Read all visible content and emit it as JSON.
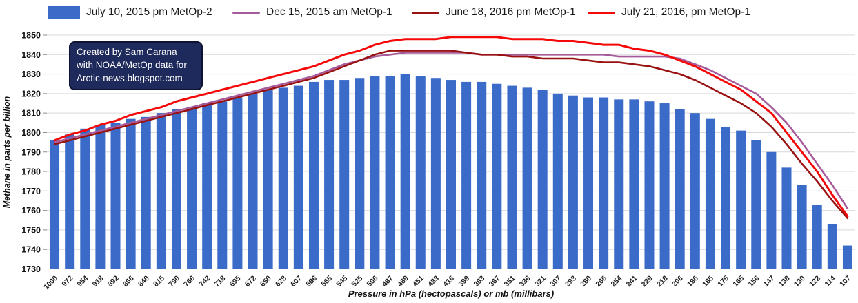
{
  "legend": {
    "items": [
      {
        "label": "July 10, 2015 pm MetOp-2",
        "swatch": "bar",
        "color": "#3a6bc9"
      },
      {
        "label": "Dec 15, 2015 am MetOp-1",
        "swatch": "line",
        "color": "#a55a99"
      },
      {
        "label": "June 18, 2016 pm MetOp-1",
        "swatch": "line",
        "color": "#991111"
      },
      {
        "label": "July 21, 2016, pm MetOp-1",
        "swatch": "line",
        "color": "#f40808"
      }
    ]
  },
  "annotation": {
    "line1": "Created by Sam Carana",
    "line2": "with NOAA/MetOp data for",
    "line3": "Arctic-news.blogspot.com",
    "bg_color": "#1f2a5c"
  },
  "chart_data": {
    "type": "bar",
    "title": "",
    "xlabel": "Pressure in hPa (hectopascals) or mb (millibars)",
    "ylabel": "Methane in parts per billion",
    "ylim": [
      1730,
      1850
    ],
    "y_ticks": [
      1730,
      1740,
      1750,
      1760,
      1770,
      1780,
      1790,
      1800,
      1810,
      1820,
      1830,
      1840,
      1850
    ],
    "grid": true,
    "legend_position": "top",
    "categories": [
      1000,
      972,
      954,
      918,
      892,
      866,
      840,
      815,
      790,
      766,
      742,
      718,
      695,
      672,
      650,
      628,
      607,
      586,
      565,
      545,
      525,
      506,
      487,
      469,
      451,
      433,
      416,
      399,
      383,
      367,
      351,
      336,
      321,
      307,
      293,
      280,
      266,
      254,
      241,
      229,
      218,
      206,
      196,
      185,
      175,
      165,
      156,
      147,
      138,
      130,
      122,
      114,
      107
    ],
    "bar_series": {
      "name": "July 10, 2015 pm MetOp-2",
      "color": "#3a6bc9",
      "values": [
        1796,
        1799,
        1802,
        1804,
        1805,
        1807,
        1808,
        1810,
        1812,
        1813,
        1815,
        1816,
        1818,
        1820,
        1822,
        1823,
        1824,
        1826,
        1827,
        1827,
        1828,
        1829,
        1829,
        1830,
        1829,
        1828,
        1827,
        1826,
        1826,
        1825,
        1824,
        1823,
        1822,
        1820,
        1819,
        1818,
        1818,
        1817,
        1817,
        1816,
        1815,
        1812,
        1810,
        1807,
        1803,
        1801,
        1796,
        1790,
        1782,
        1773,
        1763,
        1753,
        1742
      ]
    },
    "line_series": [
      {
        "name": "Dec 15, 2015 am MetOp-1",
        "color": "#a55a99",
        "width": 2.6,
        "values": [
          1795,
          1797,
          1799,
          1801,
          1803,
          1805,
          1807,
          1809,
          1811,
          1813,
          1815,
          1817,
          1819,
          1821,
          1823,
          1825,
          1827,
          1829,
          1832,
          1835,
          1837,
          1839,
          1840,
          1841,
          1841,
          1841,
          1841,
          1841,
          1840,
          1840,
          1840,
          1840,
          1840,
          1840,
          1840,
          1840,
          1840,
          1839,
          1839,
          1839,
          1839,
          1838,
          1835,
          1832,
          1828,
          1824,
          1820,
          1813,
          1805,
          1795,
          1784,
          1773,
          1761
        ]
      },
      {
        "name": "June 18, 2016 pm MetOp-1",
        "color": "#991111",
        "width": 2.6,
        "values": [
          1794,
          1796,
          1798,
          1800,
          1802,
          1804,
          1806,
          1808,
          1810,
          1812,
          1814,
          1816,
          1818,
          1820,
          1822,
          1824,
          1826,
          1828,
          1831,
          1834,
          1837,
          1840,
          1842,
          1842,
          1842,
          1842,
          1842,
          1841,
          1840,
          1840,
          1839,
          1839,
          1838,
          1838,
          1838,
          1837,
          1836,
          1836,
          1835,
          1834,
          1832,
          1830,
          1827,
          1823,
          1819,
          1815,
          1810,
          1803,
          1794,
          1784,
          1775,
          1765,
          1756
        ]
      },
      {
        "name": "July 21, 2016, pm MetOp-1",
        "color": "#f40808",
        "width": 3,
        "values": [
          1796,
          1799,
          1801,
          1804,
          1806,
          1809,
          1811,
          1813,
          1816,
          1818,
          1820,
          1822,
          1824,
          1826,
          1828,
          1830,
          1832,
          1834,
          1837,
          1840,
          1842,
          1845,
          1847,
          1848,
          1848,
          1848,
          1849,
          1849,
          1849,
          1849,
          1848,
          1848,
          1848,
          1847,
          1847,
          1846,
          1845,
          1845,
          1843,
          1842,
          1840,
          1837,
          1834,
          1830,
          1826,
          1822,
          1816,
          1810,
          1800,
          1790,
          1780,
          1768,
          1757
        ]
      }
    ]
  }
}
